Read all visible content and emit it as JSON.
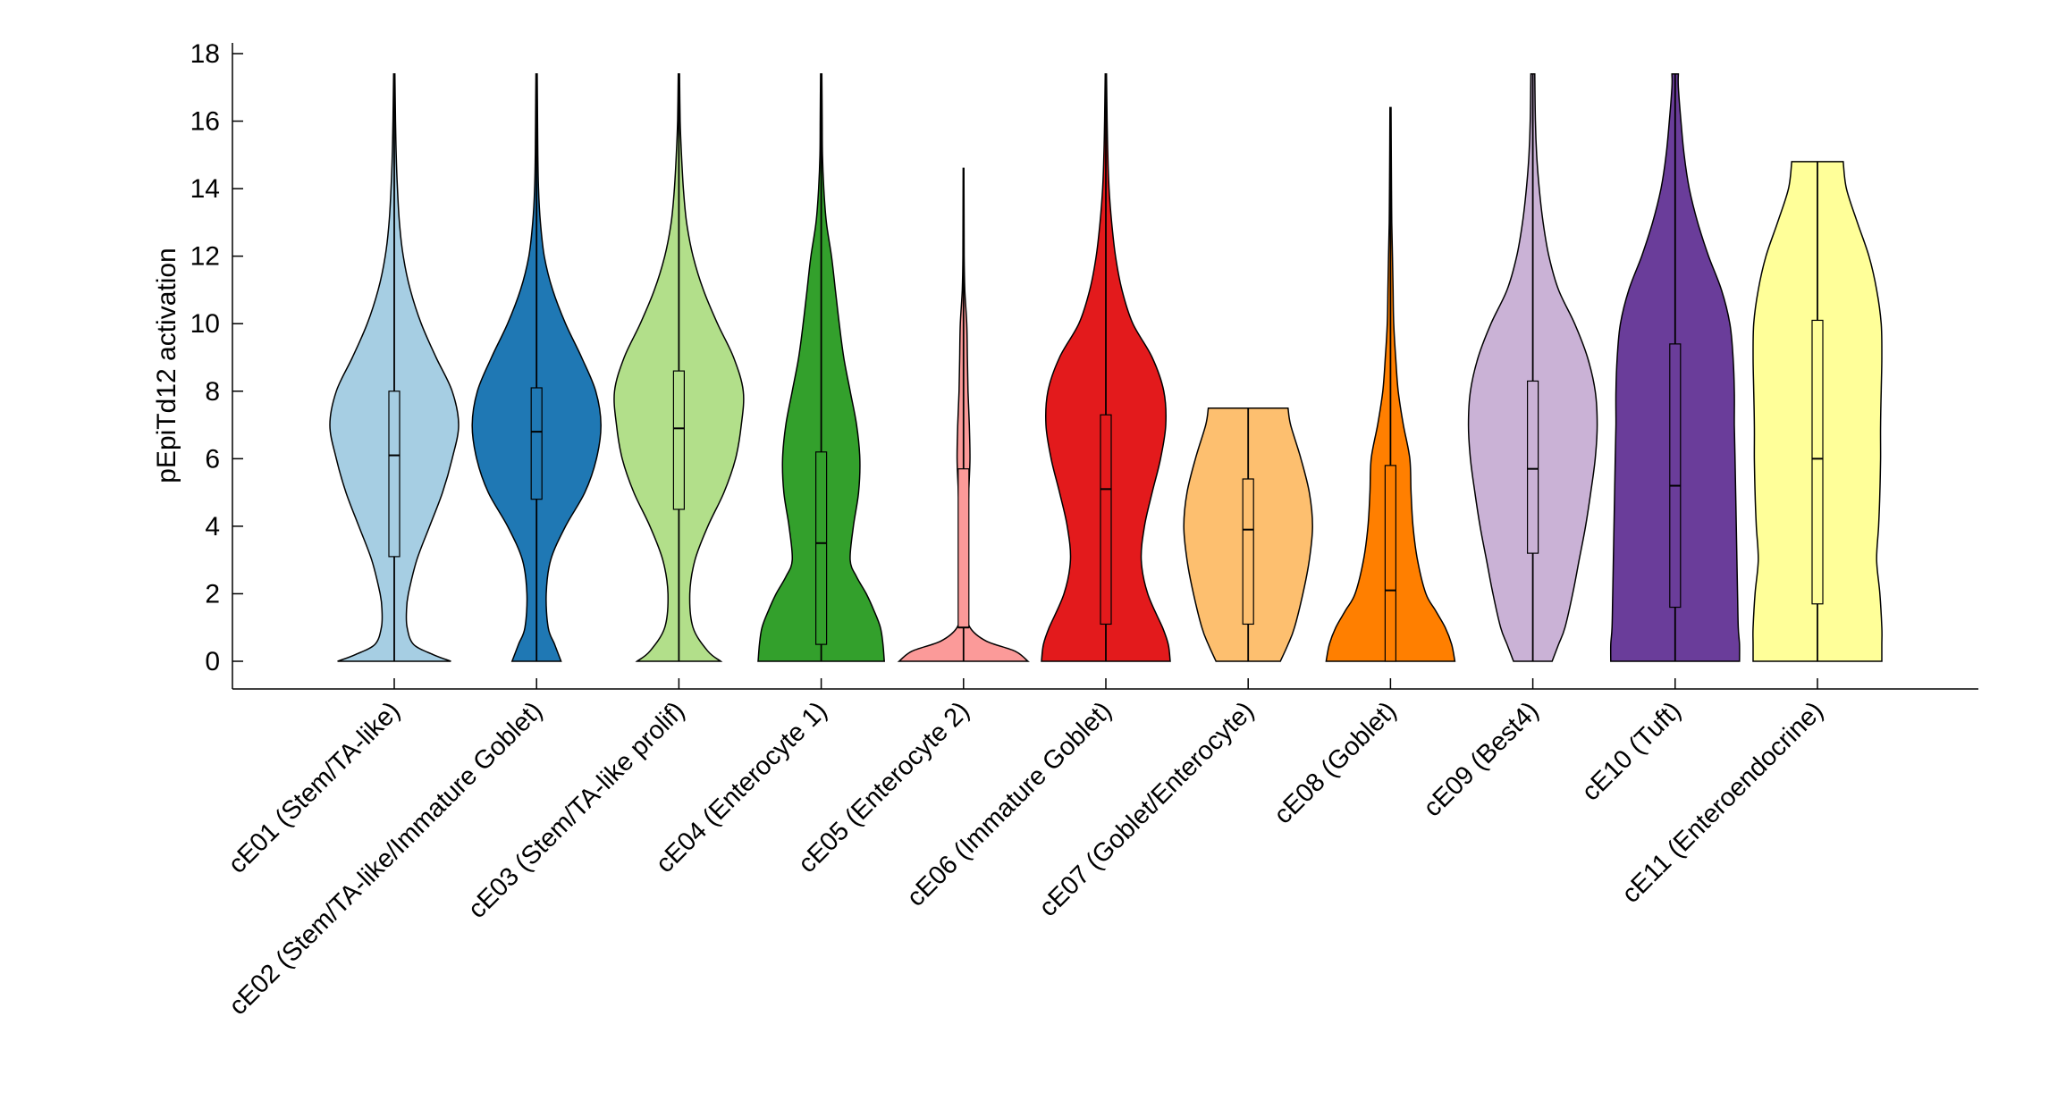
{
  "chart_data": {
    "type": "violin",
    "title": "",
    "xlabel": "",
    "ylabel": "pEpiTd12 activation",
    "ylim": [
      -0.8,
      18.2
    ],
    "yticks": [
      0,
      2,
      4,
      6,
      8,
      10,
      12,
      14,
      16,
      18
    ],
    "grid": false,
    "categories": [
      "cE01 (Stem/TA-like)",
      "cE02 (Stem/TA-like/Immature Goblet)",
      "cE03 (Stem/TA-like prolif)",
      "cE04 (Enterocyte 1)",
      "cE05 (Enterocyte 2)",
      "cE06 (Immature Goblet)",
      "cE07 (Goblet/Enterocyte)",
      "cE08 (Goblet)",
      "cE09 (Best4)",
      "cE10 (Tuft)",
      "cE11 (Enteroendocrine)"
    ],
    "colors": [
      "#a6cee3",
      "#1f78b4",
      "#b2df8a",
      "#33a02c",
      "#fb9a99",
      "#e31a1c",
      "#fdbf6f",
      "#ff7f00",
      "#cab2d6",
      "#6a3d9a",
      "#ffff99"
    ],
    "series": [
      {
        "min": 0,
        "q1": 3.1,
        "median": 6.1,
        "q3": 8.0,
        "max": 17.4,
        "density": [
          [
            0,
            0.88
          ],
          [
            0.2,
            0.6
          ],
          [
            0.5,
            0.3
          ],
          [
            1,
            0.2
          ],
          [
            1.5,
            0.19
          ],
          [
            2,
            0.22
          ],
          [
            3,
            0.35
          ],
          [
            4,
            0.55
          ],
          [
            5,
            0.75
          ],
          [
            6,
            0.9
          ],
          [
            7,
            1.0
          ],
          [
            8,
            0.9
          ],
          [
            9,
            0.65
          ],
          [
            10,
            0.42
          ],
          [
            11,
            0.25
          ],
          [
            12,
            0.14
          ],
          [
            13,
            0.08
          ],
          [
            14,
            0.05
          ],
          [
            15,
            0.03
          ],
          [
            16,
            0.02
          ],
          [
            17.4,
            0.01
          ]
        ]
      },
      {
        "min": 0,
        "q1": 4.8,
        "median": 6.8,
        "q3": 8.1,
        "max": 17.4,
        "density": [
          [
            0,
            0.38
          ],
          [
            0.5,
            0.28
          ],
          [
            1,
            0.18
          ],
          [
            2,
            0.15
          ],
          [
            3,
            0.22
          ],
          [
            4,
            0.45
          ],
          [
            5,
            0.75
          ],
          [
            6,
            0.93
          ],
          [
            7,
            1.0
          ],
          [
            8,
            0.92
          ],
          [
            9,
            0.7
          ],
          [
            10,
            0.45
          ],
          [
            11,
            0.25
          ],
          [
            12,
            0.12
          ],
          [
            13,
            0.06
          ],
          [
            14,
            0.03
          ],
          [
            15,
            0.02
          ],
          [
            16,
            0.015
          ],
          [
            17.4,
            0.01
          ]
        ]
      },
      {
        "min": 0,
        "q1": 4.5,
        "median": 6.9,
        "q3": 8.6,
        "max": 17.4,
        "density": [
          [
            0,
            0.65
          ],
          [
            0.3,
            0.45
          ],
          [
            1,
            0.22
          ],
          [
            2,
            0.17
          ],
          [
            3,
            0.25
          ],
          [
            4,
            0.45
          ],
          [
            5,
            0.7
          ],
          [
            6,
            0.88
          ],
          [
            7,
            0.97
          ],
          [
            8,
            1.0
          ],
          [
            9,
            0.85
          ],
          [
            10,
            0.6
          ],
          [
            11,
            0.38
          ],
          [
            12,
            0.22
          ],
          [
            13,
            0.12
          ],
          [
            14,
            0.07
          ],
          [
            15,
            0.04
          ],
          [
            16,
            0.02
          ],
          [
            17.4,
            0.01
          ]
        ]
      },
      {
        "min": 0,
        "q1": 0.5,
        "median": 3.5,
        "q3": 6.2,
        "max": 17.4,
        "density": [
          [
            0,
            0.98
          ],
          [
            0.5,
            0.96
          ],
          [
            1,
            0.92
          ],
          [
            1.5,
            0.82
          ],
          [
            2,
            0.7
          ],
          [
            2.5,
            0.55
          ],
          [
            3,
            0.45
          ],
          [
            4,
            0.5
          ],
          [
            5,
            0.58
          ],
          [
            6,
            0.6
          ],
          [
            7,
            0.55
          ],
          [
            8,
            0.45
          ],
          [
            9,
            0.35
          ],
          [
            10,
            0.28
          ],
          [
            11,
            0.22
          ],
          [
            12,
            0.16
          ],
          [
            13,
            0.08
          ],
          [
            14,
            0.04
          ],
          [
            15,
            0.02
          ],
          [
            16,
            0.015
          ],
          [
            17.4,
            0.01
          ]
        ]
      },
      {
        "min": 0,
        "q1": 1.0,
        "median": 1.0,
        "q3": 5.7,
        "max": 14.6,
        "density": [
          [
            0,
            1.0
          ],
          [
            0.3,
            0.8
          ],
          [
            0.6,
            0.35
          ],
          [
            1,
            0.1
          ],
          [
            1.5,
            0.05
          ],
          [
            2,
            0.04
          ],
          [
            3,
            0.05
          ],
          [
            4,
            0.06
          ],
          [
            5,
            0.08
          ],
          [
            6,
            0.1
          ],
          [
            7,
            0.09
          ],
          [
            8,
            0.07
          ],
          [
            9,
            0.06
          ],
          [
            10,
            0.05
          ],
          [
            11,
            0.02
          ],
          [
            12,
            0.01
          ],
          [
            14.6,
            0.006
          ]
        ]
      },
      {
        "min": 0,
        "q1": 1.1,
        "median": 5.1,
        "q3": 7.3,
        "max": 17.4,
        "density": [
          [
            0,
            1.0
          ],
          [
            0.5,
            0.97
          ],
          [
            1,
            0.88
          ],
          [
            2,
            0.65
          ],
          [
            3,
            0.55
          ],
          [
            4,
            0.6
          ],
          [
            5,
            0.72
          ],
          [
            6,
            0.85
          ],
          [
            7,
            0.93
          ],
          [
            8,
            0.9
          ],
          [
            9,
            0.72
          ],
          [
            10,
            0.42
          ],
          [
            11,
            0.25
          ],
          [
            12,
            0.15
          ],
          [
            13,
            0.09
          ],
          [
            14,
            0.05
          ],
          [
            15,
            0.03
          ],
          [
            16,
            0.02
          ],
          [
            17.4,
            0.01
          ]
        ]
      },
      {
        "min": 0,
        "q1": 1.1,
        "median": 3.9,
        "q3": 5.4,
        "max": 7.5,
        "density": [
          [
            0,
            0.5
          ],
          [
            0.5,
            0.62
          ],
          [
            1,
            0.72
          ],
          [
            2,
            0.85
          ],
          [
            3,
            0.95
          ],
          [
            4,
            1.0
          ],
          [
            5,
            0.95
          ],
          [
            6,
            0.82
          ],
          [
            7,
            0.66
          ],
          [
            7.5,
            0.62
          ]
        ]
      },
      {
        "min": 0,
        "q1": 0,
        "median": 2.1,
        "q3": 5.8,
        "max": 16.4,
        "density": [
          [
            0,
            1.0
          ],
          [
            0.5,
            0.95
          ],
          [
            1,
            0.85
          ],
          [
            1.5,
            0.7
          ],
          [
            2,
            0.55
          ],
          [
            3,
            0.42
          ],
          [
            4,
            0.35
          ],
          [
            5,
            0.32
          ],
          [
            6,
            0.3
          ],
          [
            7,
            0.2
          ],
          [
            8,
            0.12
          ],
          [
            9,
            0.08
          ],
          [
            10,
            0.05
          ],
          [
            11,
            0.04
          ],
          [
            12,
            0.03
          ],
          [
            13,
            0.02
          ],
          [
            14,
            0.015
          ],
          [
            16.4,
            0.008
          ]
        ]
      },
      {
        "min": 0,
        "q1": 3.2,
        "median": 5.7,
        "q3": 8.3,
        "max": 17.4,
        "density": [
          [
            0,
            0.3
          ],
          [
            0.5,
            0.4
          ],
          [
            1,
            0.5
          ],
          [
            2,
            0.62
          ],
          [
            3,
            0.72
          ],
          [
            4,
            0.82
          ],
          [
            5,
            0.9
          ],
          [
            6,
            0.97
          ],
          [
            7,
            1.0
          ],
          [
            8,
            0.97
          ],
          [
            9,
            0.85
          ],
          [
            10,
            0.65
          ],
          [
            11,
            0.4
          ],
          [
            12,
            0.25
          ],
          [
            13,
            0.16
          ],
          [
            14,
            0.1
          ],
          [
            15,
            0.06
          ],
          [
            16,
            0.04
          ],
          [
            17.4,
            0.03
          ]
        ]
      },
      {
        "min": 0,
        "q1": 1.6,
        "median": 5.2,
        "q3": 9.4,
        "max": 17.4,
        "density": [
          [
            0,
            1.0
          ],
          [
            0.5,
            1.0
          ],
          [
            1,
            0.98
          ],
          [
            2,
            0.97
          ],
          [
            3,
            0.96
          ],
          [
            4,
            0.95
          ],
          [
            5,
            0.94
          ],
          [
            6,
            0.93
          ],
          [
            7,
            0.92
          ],
          [
            8,
            0.92
          ],
          [
            9,
            0.9
          ],
          [
            10,
            0.85
          ],
          [
            11,
            0.72
          ],
          [
            12,
            0.52
          ],
          [
            13,
            0.35
          ],
          [
            14,
            0.22
          ],
          [
            15,
            0.14
          ],
          [
            16,
            0.09
          ],
          [
            17,
            0.05
          ],
          [
            17.4,
            0.05
          ]
        ]
      },
      {
        "min": 0,
        "q1": 1.7,
        "median": 6.0,
        "q3": 10.1,
        "max": 14.8,
        "density": [
          [
            0,
            1.0
          ],
          [
            0.5,
            1.0
          ],
          [
            1,
            1.0
          ],
          [
            2,
            0.97
          ],
          [
            3,
            0.92
          ],
          [
            4,
            0.95
          ],
          [
            5,
            0.97
          ],
          [
            6,
            0.98
          ],
          [
            7,
            0.98
          ],
          [
            8,
            0.99
          ],
          [
            9,
            1.0
          ],
          [
            10,
            0.99
          ],
          [
            11,
            0.92
          ],
          [
            12,
            0.8
          ],
          [
            13,
            0.62
          ],
          [
            14,
            0.45
          ],
          [
            14.8,
            0.4
          ]
        ]
      }
    ]
  }
}
